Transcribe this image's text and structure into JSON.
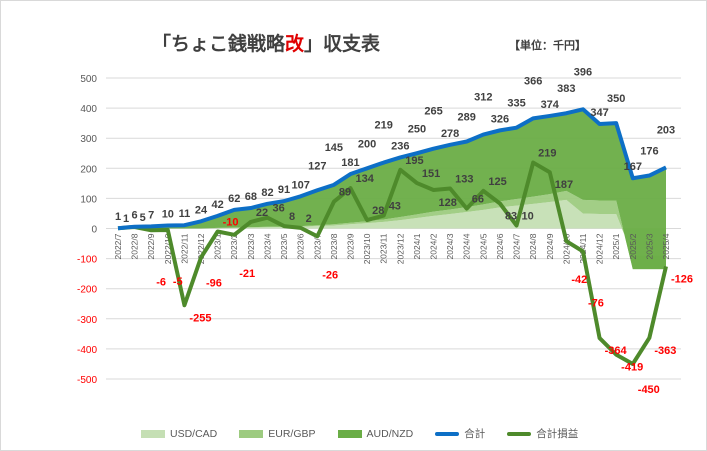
{
  "title": {
    "prefix": "「ちょこ銭戦略",
    "highlight": "改",
    "suffix": "」収支表"
  },
  "unit": "【単位：千円】",
  "colors": {
    "usdcad": "#c5dfb4",
    "eurgbp": "#9dcb80",
    "audnzd": "#6aad46",
    "total": "#0d6fc6",
    "pl": "#4e8a2b",
    "negative": "#ff0000"
  },
  "chart_data": {
    "type": "area",
    "title": "「ちょこ銭戦略改」収支表",
    "ylabel": "千円",
    "ylim": [
      -500,
      500
    ],
    "yticks": [
      500,
      400,
      300,
      200,
      100,
      0,
      -100,
      -200,
      -300,
      -400,
      -500
    ],
    "grid": true,
    "legend_position": "bottom",
    "categories": [
      "2022/7",
      "2022/8",
      "2022/9",
      "2022/10",
      "2022/11",
      "2022/12",
      "2023/1",
      "2023/2",
      "2023/3",
      "2023/4",
      "2023/5",
      "2023/6",
      "2023/7",
      "2023/8",
      "2023/9",
      "2023/10",
      "2023/11",
      "2023/12",
      "2024/1",
      "2024/2",
      "2024/3",
      "2024/4",
      "2024/5",
      "2024/6",
      "2024/7",
      "2024/8",
      "2024/9",
      "2024/10",
      "2024/11",
      "2024/12",
      "2025/1",
      "2025/2",
      "2025/3",
      "2025/4"
    ],
    "series": [
      {
        "name": "USD/CAD",
        "type": "stacked-area",
        "values": [
          0,
          0,
          0,
          0,
          0,
          0,
          1,
          2,
          3,
          4,
          5,
          6,
          8,
          10,
          14,
          18,
          22,
          28,
          35,
          42,
          48,
          55,
          62,
          70,
          76,
          82,
          88,
          95,
          50,
          48,
          48,
          -90,
          -90,
          -90
        ]
      },
      {
        "name": "EUR/GBP",
        "type": "stacked-area",
        "values": [
          0,
          0,
          0,
          0,
          0,
          0,
          1,
          1,
          1,
          2,
          2,
          2,
          3,
          4,
          5,
          6,
          8,
          10,
          12,
          14,
          15,
          16,
          18,
          20,
          22,
          24,
          26,
          30,
          45,
          45,
          45,
          -45,
          -45,
          -45
        ]
      },
      {
        "name": "AUD/NZD",
        "type": "stacked-area",
        "values": [
          1,
          6,
          7,
          10,
          11,
          24,
          40,
          59,
          64,
          76,
          84,
          99,
          116,
          131,
          162,
          176,
          189,
          198,
          203,
          209,
          215,
          218,
          232,
          236,
          237,
          260,
          260,
          258,
          301,
          254,
          257,
          302,
          311,
          338
        ]
      },
      {
        "name": "合計",
        "type": "line",
        "values": [
          1,
          6,
          7,
          10,
          11,
          24,
          42,
          62,
          68,
          82,
          91,
          107,
          127,
          145,
          181,
          200,
          219,
          236,
          250,
          265,
          278,
          289,
          312,
          326,
          335,
          366,
          374,
          383,
          396,
          347,
          350,
          167,
          176,
          203
        ]
      },
      {
        "name": "合計損益",
        "type": "line",
        "values": [
          1,
          5,
          -6,
          -5,
          -255,
          -96,
          -10,
          -21,
          22,
          36,
          8,
          2,
          -26,
          89,
          134,
          28,
          43,
          195,
          151,
          128,
          133,
          66,
          125,
          83,
          10,
          219,
          187,
          -42,
          -76,
          -364,
          -419,
          -450,
          -363,
          -126
        ]
      }
    ]
  }
}
